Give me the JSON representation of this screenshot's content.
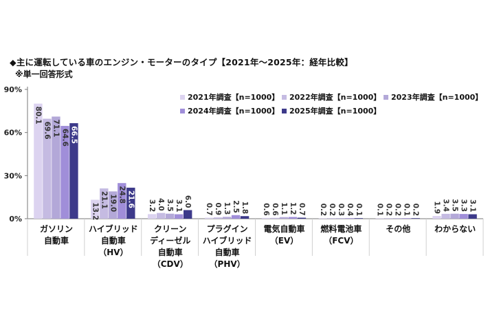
{
  "header": {
    "title": "◆主に運転している車のエンジン・モーターのタイプ【2021年～2025年：経年比較】",
    "subtitle": "※単一回答形式"
  },
  "colors": {
    "series": [
      "#dcd3f0",
      "#c5bbe2",
      "#b3a8d8",
      "#a08ed9",
      "#3d3a8a"
    ],
    "grid": "#cfcfcf",
    "axis": "#777777"
  },
  "chart_data": {
    "type": "bar",
    "title": "◆主に運転している車のエンジン・モーターのタイプ【2021年～2025年：経年比較】",
    "subtitle": "※単一回答形式",
    "categories": [
      [
        "ガソリン",
        "自動車"
      ],
      [
        "ハイブリッド",
        "自動車",
        "（HV）"
      ],
      [
        "クリーン",
        "ディーゼル",
        "自動車",
        "（CDV）"
      ],
      [
        "プラグイン",
        "ハイブリッド",
        "自動車",
        "（PHV）"
      ],
      [
        "電気自動車",
        "（EV）"
      ],
      [
        "燃料電池車",
        "（FCV）"
      ],
      [
        "その他"
      ],
      [
        "わからない"
      ]
    ],
    "series": [
      {
        "name": "2021年調査【n=1000】",
        "values": [
          80.1,
          13.2,
          3.2,
          0.7,
          0.6,
          0.2,
          0.1,
          1.9
        ]
      },
      {
        "name": "2022年調査【n=1000】",
        "values": [
          69.6,
          21.1,
          4.0,
          0.9,
          0.6,
          0.2,
          0.2,
          3.4
        ]
      },
      {
        "name": "2023年調査【n=1000】",
        "values": [
          71.1,
          19.0,
          3.5,
          1.3,
          1.1,
          0.3,
          0.2,
          3.5
        ]
      },
      {
        "name": "2024年調査【n=1000】",
        "values": [
          64.6,
          24.8,
          3.1,
          2.5,
          1.2,
          0.4,
          0.1,
          3.3
        ]
      },
      {
        "name": "2025年調査【n=1000】",
        "values": [
          66.5,
          21.6,
          6.0,
          1.8,
          0.7,
          0.1,
          0.2,
          3.1
        ]
      }
    ],
    "yticks": [
      "0%",
      "30%",
      "60%",
      "90%"
    ],
    "ylim": [
      0,
      90
    ],
    "grid": false,
    "legend_position": "top-right"
  }
}
